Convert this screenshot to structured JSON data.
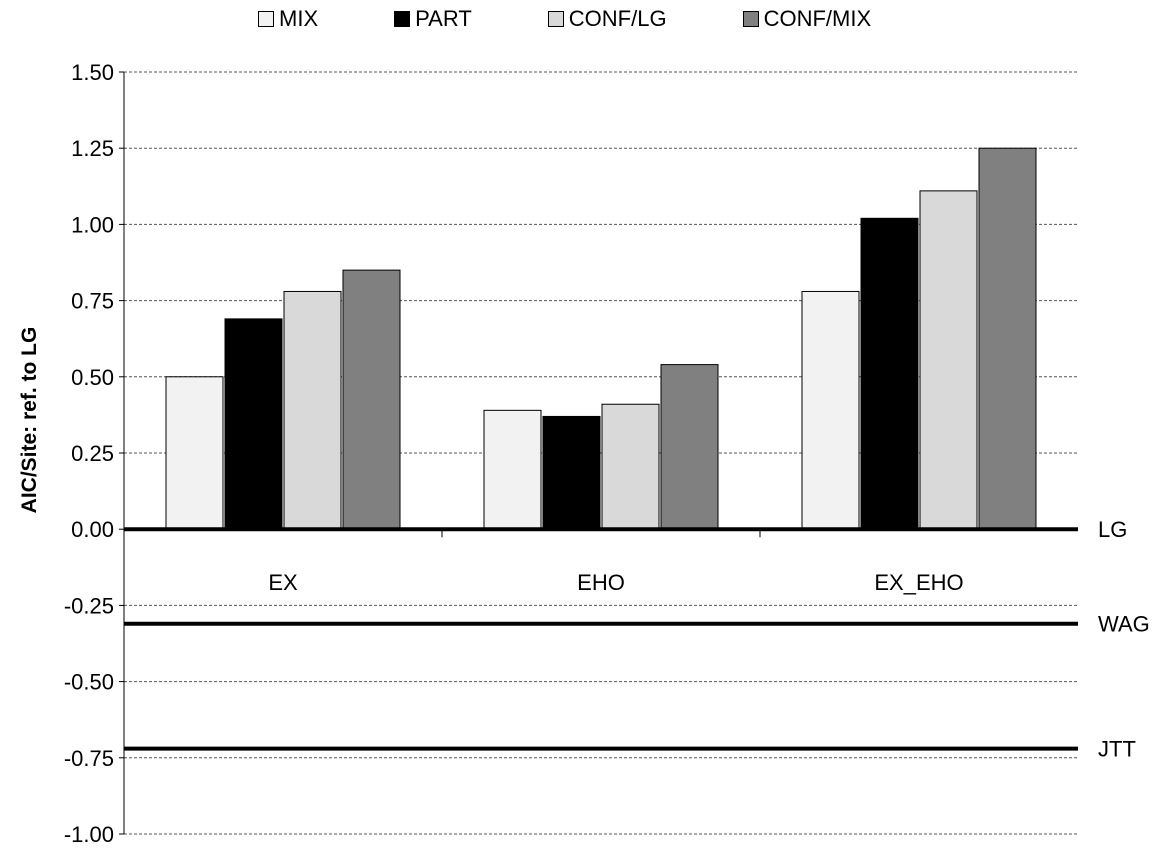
{
  "chart_data": {
    "type": "bar",
    "categories": [
      "EX",
      "EHO",
      "EX_EHO"
    ],
    "series": [
      {
        "name": "MIX",
        "color": "#f2f2f2",
        "values": [
          0.5,
          0.39,
          0.78
        ]
      },
      {
        "name": "PART",
        "color": "#000000",
        "values": [
          0.69,
          0.37,
          1.02
        ]
      },
      {
        "name": "CONF/LG",
        "color": "#d9d9d9",
        "values": [
          0.78,
          0.41,
          1.11
        ]
      },
      {
        "name": "CONF/MIX",
        "color": "#808080",
        "values": [
          0.85,
          0.54,
          1.25
        ]
      }
    ],
    "reference_lines": [
      {
        "label": "LG",
        "value": 0.0
      },
      {
        "label": "WAG",
        "value": -0.31
      },
      {
        "label": "JTT",
        "value": -0.72
      }
    ],
    "ylabel": "AIC/Site: ref. to LG",
    "xlabel": "",
    "ylim": [
      -1.0,
      1.5
    ],
    "yticks": [
      "1.50",
      "1.25",
      "1.00",
      "0.75",
      "0.50",
      "0.25",
      "0.00",
      "-0.25",
      "-0.50",
      "-0.75",
      "-1.00"
    ],
    "ytick_values": [
      1.5,
      1.25,
      1.0,
      0.75,
      0.5,
      0.25,
      0.0,
      -0.25,
      -0.5,
      -0.75,
      -1.0
    ],
    "grid": true,
    "legend_position": "top"
  }
}
